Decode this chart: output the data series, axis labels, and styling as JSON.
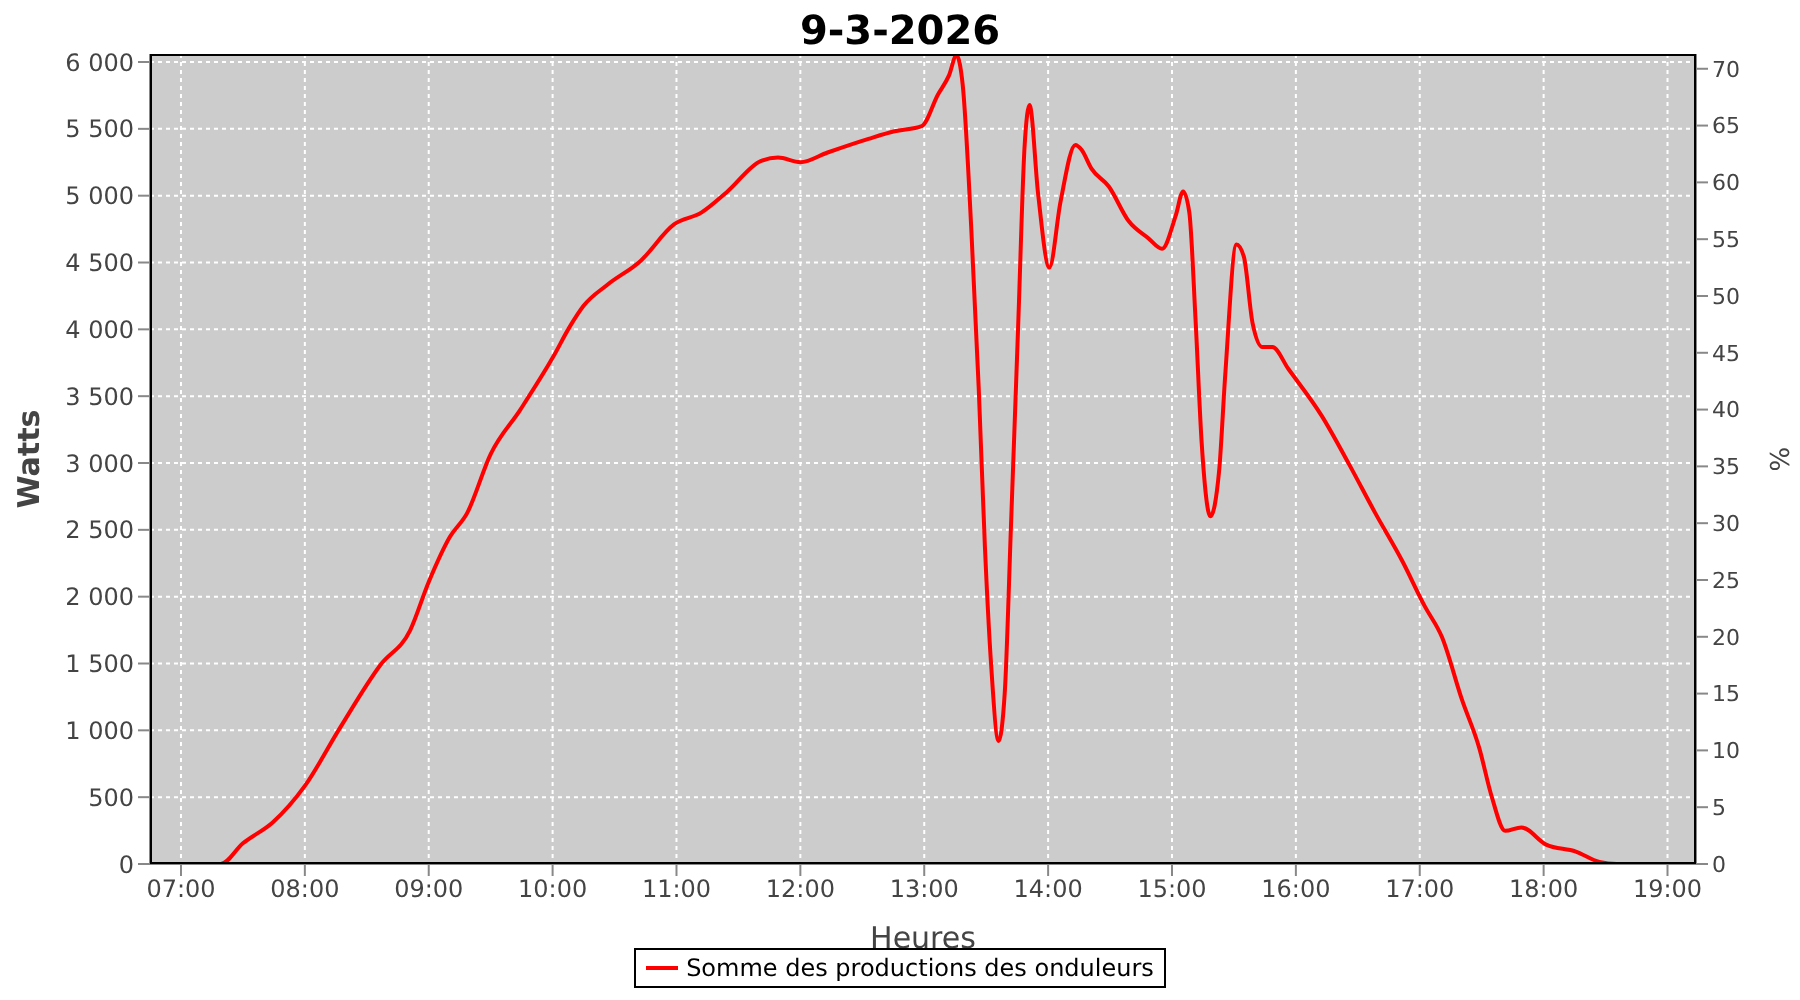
{
  "chart_data": {
    "type": "line",
    "title": "9-3-2026",
    "xlabel": "Heures",
    "ylabel": "Watts",
    "y2label": "%",
    "x": [
      7.0,
      7.32,
      7.5,
      7.74,
      8.0,
      8.28,
      8.61,
      8.85,
      9.0,
      9.17,
      9.31,
      9.5,
      9.74,
      10.0,
      10.14,
      10.25,
      10.44,
      10.71,
      10.98,
      11.2,
      11.41,
      11.68,
      11.82,
      12.0,
      12.22,
      12.55,
      12.76,
      12.98,
      13.11,
      13.2,
      13.26,
      13.31,
      13.38,
      13.44,
      13.49,
      13.54,
      13.6,
      13.65,
      13.7,
      13.76,
      13.81,
      13.85,
      13.92,
      14.01,
      14.1,
      14.22,
      14.27,
      14.35,
      14.49,
      14.65,
      14.81,
      14.92,
      15.03,
      15.09,
      15.14,
      15.19,
      15.24,
      15.31,
      15.38,
      15.43,
      15.52,
      15.58,
      15.65,
      15.73,
      15.81,
      15.94,
      16.21,
      16.43,
      16.64,
      16.86,
      17.04,
      17.18,
      17.34,
      17.48,
      17.58,
      17.69,
      17.82,
      18.02,
      18.26,
      18.45,
      18.59,
      19.0
    ],
    "series": [
      {
        "name": "Somme des productions des onduleurs",
        "color": "#ff0000",
        "values": [
          0,
          0,
          155,
          310,
          584,
          1013,
          1489,
          1748,
          2110,
          2446,
          2625,
          3067,
          3400,
          3787,
          4022,
          4176,
          4332,
          4512,
          4785,
          4873,
          5030,
          5259,
          5285,
          5250,
          5323,
          5425,
          5482,
          5520,
          5755,
          5900,
          6050,
          5834,
          4748,
          3557,
          2368,
          1489,
          920,
          1282,
          2524,
          4075,
          5368,
          5678,
          5006,
          4463,
          4954,
          5379,
          5343,
          5202,
          5069,
          4810,
          4681,
          4603,
          4851,
          5032,
          4873,
          4075,
          3145,
          2601,
          2937,
          3662,
          4634,
          4544,
          4049,
          3868,
          3868,
          3703,
          3351,
          2990,
          2627,
          2265,
          1929,
          1696,
          1231,
          869,
          507,
          248,
          274,
          145,
          93,
          15,
          0,
          0
        ]
      }
    ],
    "xlim": [
      6.75,
      19.23
    ],
    "xticks": [
      {
        "value": 7,
        "label": "07:00"
      },
      {
        "value": 8,
        "label": "08:00"
      },
      {
        "value": 9,
        "label": "09:00"
      },
      {
        "value": 10,
        "label": "10:00"
      },
      {
        "value": 11,
        "label": "11:00"
      },
      {
        "value": 12,
        "label": "12:00"
      },
      {
        "value": 13,
        "label": "13:00"
      },
      {
        "value": 14,
        "label": "14:00"
      },
      {
        "value": 15,
        "label": "15:00"
      },
      {
        "value": 16,
        "label": "16:00"
      },
      {
        "value": 17,
        "label": "17:00"
      },
      {
        "value": 18,
        "label": "18:00"
      },
      {
        "value": 19,
        "label": "19:00"
      }
    ],
    "ylim": [
      0,
      6060
    ],
    "yticks": [
      0,
      500,
      {
        "value": 1000,
        "label": "1 000"
      },
      {
        "value": 1500,
        "label": "1 500"
      },
      {
        "value": 2000,
        "label": "2 000"
      },
      {
        "value": 2500,
        "label": "2 500"
      },
      {
        "value": 3000,
        "label": "3 000"
      },
      {
        "value": 3500,
        "label": "3 500"
      },
      {
        "value": 4000,
        "label": "4 000"
      },
      {
        "value": 4500,
        "label": "4 500"
      },
      {
        "value": 5000,
        "label": "5 000"
      },
      {
        "value": 5500,
        "label": "5 500"
      },
      {
        "value": 6000,
        "label": "6 000"
      }
    ],
    "y2lim": [
      0,
      71.3
    ],
    "y2ticks": [
      0,
      5,
      10,
      15,
      20,
      25,
      30,
      35,
      40,
      45,
      50,
      55,
      60,
      65,
      70
    ],
    "grid": true,
    "legend": "bottom"
  }
}
